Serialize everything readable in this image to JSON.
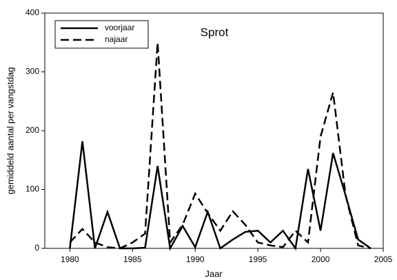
{
  "chart_data": {
    "type": "line",
    "title": "Sprot",
    "xlabel": "Jaar",
    "ylabel": "gemiddeld aantal per vangstdag",
    "x": [
      1980,
      1981,
      1982,
      1983,
      1984,
      1985,
      1986,
      1987,
      1988,
      1989,
      1990,
      1991,
      1992,
      1993,
      1994,
      1995,
      1996,
      1997,
      1998,
      1999,
      2000,
      2001,
      2002,
      2003,
      2004
    ],
    "series": [
      {
        "name": "voorjaar",
        "color": "#000000",
        "dash": "solid",
        "values": [
          0,
          182,
          0,
          62,
          0,
          0,
          1,
          140,
          0,
          38,
          2,
          62,
          0,
          15,
          28,
          30,
          10,
          30,
          0,
          135,
          30,
          162,
          90,
          15,
          0
        ]
      },
      {
        "name": "najaar",
        "color": "#000000",
        "dash": "dashed",
        "values": [
          10,
          33,
          10,
          2,
          0,
          10,
          25,
          350,
          10,
          40,
          93,
          60,
          30,
          63,
          40,
          10,
          5,
          2,
          30,
          10,
          190,
          265,
          90,
          5,
          0
        ]
      }
    ],
    "xlim": [
      1978,
      2005
    ],
    "xticks": [
      1980,
      1985,
      1990,
      1995,
      2000,
      2005
    ],
    "ylim": [
      0,
      400
    ],
    "yticks": [
      0,
      100,
      200,
      300,
      400
    ],
    "grid": false,
    "legend": "upper left"
  }
}
